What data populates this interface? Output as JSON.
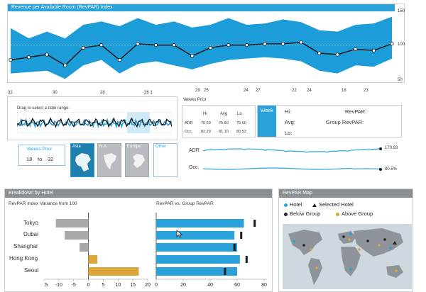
{
  "colors": {
    "accent": "#2aa1d9",
    "header_gray": "#8a8f94",
    "gray_bar": "#a6a8ab",
    "orange_bar": "#dba63a",
    "black": "#222222"
  },
  "top_chart": {
    "title": "Revenue per Available Room (RevPAR) Index",
    "y_ticks": [
      "150",
      "100",
      "50"
    ],
    "x_ticks": [
      "32",
      "30",
      "28",
      "26 1",
      "24",
      "22",
      "20",
      "18"
    ],
    "x_ticks_lower": [
      "29",
      "25",
      "27",
      "24",
      "23"
    ],
    "line": [
      78,
      82,
      86,
      70,
      96,
      100,
      78,
      102,
      100,
      100,
      84,
      96,
      100,
      100,
      102,
      102,
      104,
      88,
      86,
      94,
      92,
      102
    ],
    "band_hi": [
      125,
      110,
      120,
      110,
      130,
      135,
      128,
      140,
      130,
      135,
      126,
      130,
      140,
      130,
      132,
      138,
      134,
      122,
      120,
      130,
      132,
      142
    ],
    "band_lo": [
      58,
      60,
      62,
      50,
      70,
      78,
      58,
      72,
      76,
      70,
      64,
      72,
      78,
      80,
      82,
      80,
      76,
      62,
      58,
      70,
      68,
      80
    ]
  },
  "range_selector": {
    "label": "Drag to select a date range:"
  },
  "weeks_prior_table": {
    "title": "Weeks Prior",
    "headers": [
      "Hi",
      "Avg",
      "Lo"
    ],
    "rows": [
      {
        "label": "ADR",
        "values": [
          "75.60",
          "75.60",
          "75.60"
        ]
      },
      {
        "label": "Occ.",
        "values": [
          "82.29",
          "81.10",
          "80.53"
        ]
      }
    ]
  },
  "week_box": {
    "label": "Week",
    "fields": [
      "Hi:",
      "Avg:",
      "Lo:"
    ],
    "revpar_label": "RevPAR:",
    "group_revpar_label": "Group RevPAR:"
  },
  "weeks_prior_selector": {
    "title": "Weeks Prior",
    "from": "18",
    "to_word": "to",
    "to": "32"
  },
  "regions": [
    "Asia",
    "N.A.",
    "Europe",
    "Other"
  ],
  "sparklines": {
    "adr": {
      "label": "ADR",
      "value": "170.93"
    },
    "occ": {
      "label": "Occ.",
      "value": "80.5%"
    }
  },
  "breakdown": {
    "title": "Breakdown by Hotel",
    "variance_title": "RevPAR Index Variance from 100",
    "revpar_title": "RevPAR vs. Group RevPAR",
    "hotels": [
      "Tokyo",
      "Dubai",
      "Shanghai",
      "Hong Kong",
      "Seoul"
    ],
    "variance_values": [
      -11,
      -8,
      -3,
      3,
      17
    ],
    "variance_ticks": [
      "-15",
      "-10",
      "-5",
      "0",
      "5",
      "10",
      "15",
      "20"
    ],
    "revpar_values": [
      65,
      58,
      60,
      62,
      60
    ],
    "group_values": [
      73,
      63,
      58,
      67,
      51
    ],
    "revpar_ticks": [
      "0",
      "20",
      "40",
      "60",
      "80"
    ]
  },
  "map": {
    "title": "RevPAR Map",
    "legend": [
      {
        "type": "dot",
        "color": "#2aa1d9",
        "label": "Hotel"
      },
      {
        "type": "tri",
        "color": "#222222",
        "label": "Selected Hotel"
      },
      {
        "type": "dot",
        "color": "#222222",
        "label": "Below Group"
      },
      {
        "type": "dot",
        "color": "#dba63a",
        "label": "Above Group"
      }
    ]
  }
}
